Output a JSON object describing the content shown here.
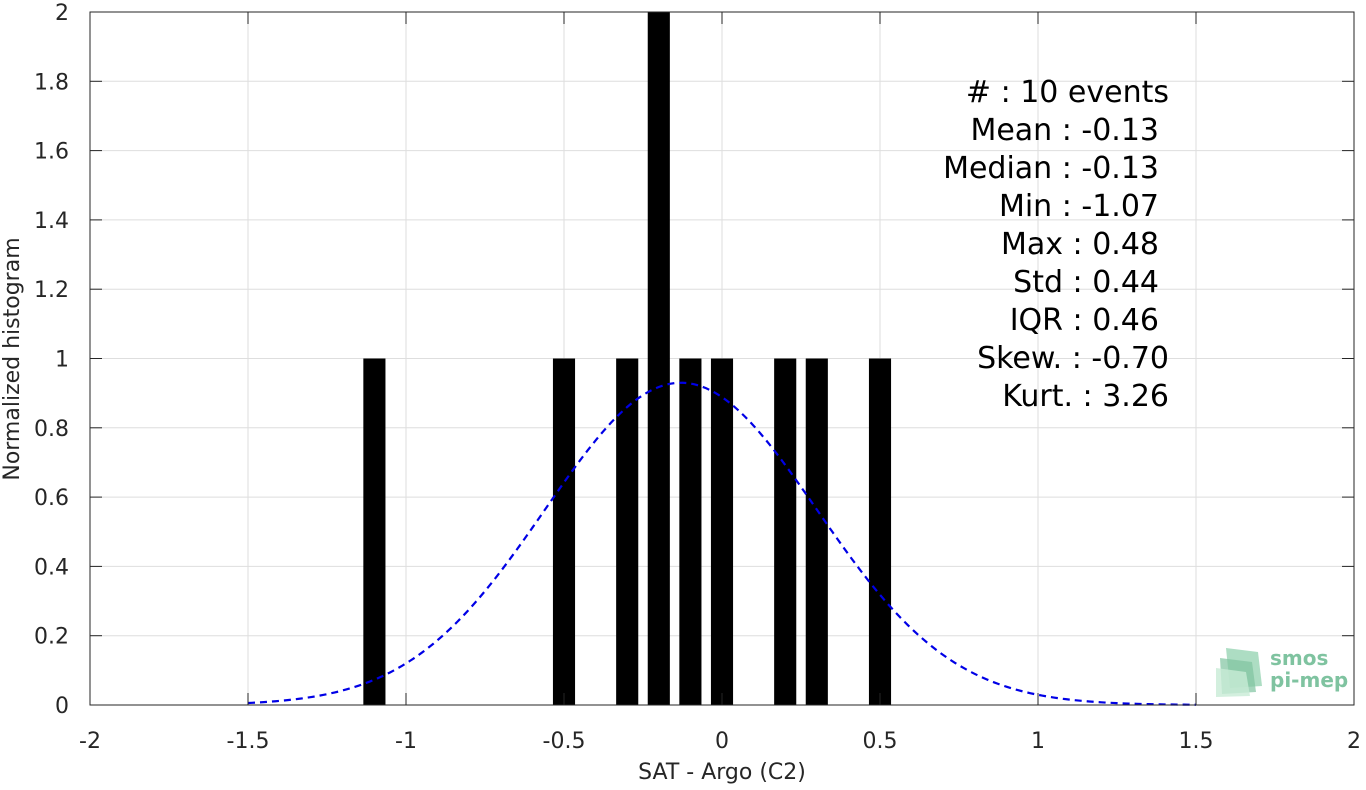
{
  "chart_data": {
    "type": "bar",
    "xlabel": "SAT - Argo (C2)",
    "ylabel": "Normalized histogram",
    "xlim": [
      -2,
      2
    ],
    "ylim": [
      0,
      2
    ],
    "grid": true,
    "x_ticks": [
      "-2",
      "-1.5",
      "-1",
      "-0.5",
      "0",
      "0.5",
      "1",
      "1.5",
      "2"
    ],
    "y_ticks": [
      "0",
      "0.2",
      "0.4",
      "0.6",
      "0.8",
      "1",
      "1.2",
      "1.4",
      "1.6",
      "1.8",
      "2"
    ],
    "bars": {
      "color": "#000000",
      "width": 0.07,
      "x": [
        -1.1,
        -0.5,
        -0.3,
        -0.2,
        -0.1,
        0.0,
        0.2,
        0.3,
        0.5
      ],
      "values": [
        1,
        1,
        1,
        2,
        1,
        1,
        1,
        1,
        1
      ]
    },
    "fit_curve": {
      "style": "dashed",
      "color": "#0000e6",
      "mean": -0.13,
      "std": 0.43,
      "peak": 0.93,
      "x_range": [
        -1.5,
        1.5
      ]
    },
    "stats": [
      "#  : 10 events",
      "Mean : -0.13",
      "Median : -0.13",
      "Min : -1.07",
      "Max : 0.48",
      "Std : 0.44",
      "IQR : 0.46",
      "Skew. : -0.70",
      "Kurt. : 3.26"
    ]
  },
  "logo": {
    "line1": "smos",
    "line2": "pi-mep",
    "color": "#7fc3a0"
  }
}
